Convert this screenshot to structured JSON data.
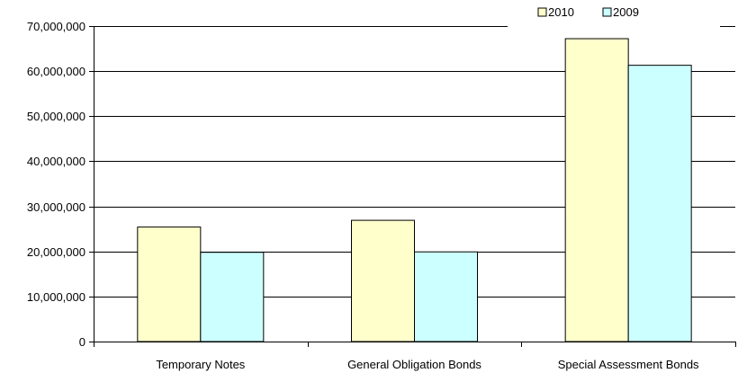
{
  "chart_data": {
    "type": "bar",
    "title": "",
    "xlabel": "",
    "ylabel": "",
    "categories": [
      "Temporary Notes",
      "General Obligation Bonds",
      "Special Assessment Bonds"
    ],
    "series": [
      {
        "name": "2010",
        "values": [
          25400000,
          26900000,
          67200000
        ],
        "color": "#ffffcc"
      },
      {
        "name": "2009",
        "values": [
          19800000,
          19900000,
          61300000
        ],
        "color": "#ccffff"
      }
    ],
    "ylim": [
      0,
      70000000
    ],
    "y_ticks": [
      0,
      10000000,
      20000000,
      30000000,
      40000000,
      50000000,
      60000000,
      70000000
    ],
    "y_tick_labels": [
      "0",
      "10,000,000",
      "20,000,000",
      "30,000,000",
      "40,000,000",
      "50,000,000",
      "60,000,000",
      "70,000,000"
    ],
    "grid": "horizontal",
    "legend_position": "top-right",
    "bar_outline_color": "#000000"
  }
}
